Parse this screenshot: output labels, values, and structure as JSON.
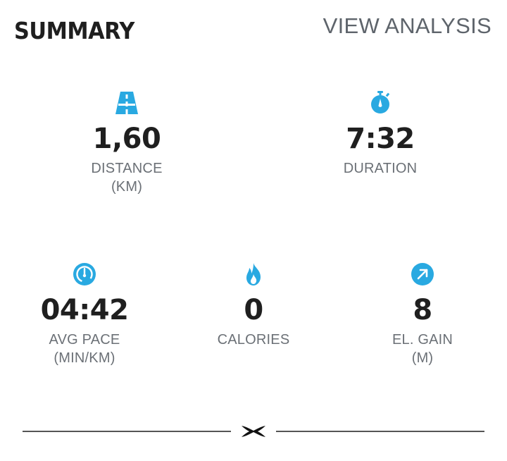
{
  "header": {
    "title": "SUMMARY",
    "link_label": "VIEW ANALYSIS"
  },
  "colors": {
    "accent": "#29a9e1",
    "text_primary": "#1f1f1f",
    "text_secondary": "#6b7076"
  },
  "stats": {
    "distance": {
      "value": "1,60",
      "label_line1": "DISTANCE",
      "label_line2": "(KM)",
      "icon": "road-icon"
    },
    "duration": {
      "value": "7:32",
      "label_line1": "DURATION",
      "label_line2": "",
      "icon": "stopwatch-icon"
    },
    "avg_pace": {
      "value": "04:42",
      "label_line1": "AVG PACE",
      "label_line2": "(MIN/KM)",
      "icon": "speedometer-icon"
    },
    "calories": {
      "value": "0",
      "label_line1": "CALORIES",
      "label_line2": "",
      "icon": "flame-icon"
    },
    "elevation": {
      "value": "8",
      "label_line1": "EL. GAIN",
      "label_line2": "(M)",
      "icon": "arrow-up-right-icon"
    }
  },
  "footer": {
    "logo": "under-armour-logo"
  }
}
